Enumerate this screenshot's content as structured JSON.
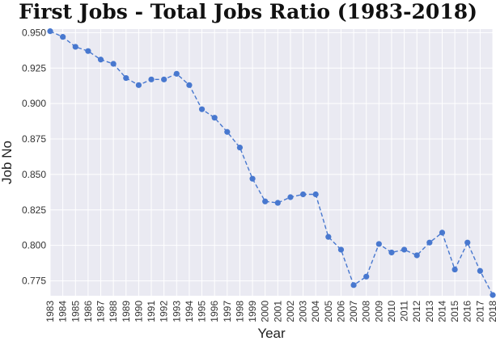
{
  "chart_data": {
    "type": "line",
    "title": "First Jobs - Total Jobs Ratio (1983-2018)",
    "xlabel": "Year",
    "ylabel": "Job No",
    "x": [
      1983,
      1984,
      1985,
      1986,
      1987,
      1988,
      1989,
      1990,
      1991,
      1992,
      1993,
      1994,
      1995,
      1996,
      1997,
      1998,
      1999,
      2000,
      2001,
      2002,
      2003,
      2004,
      2005,
      2006,
      2007,
      2008,
      2009,
      2010,
      2011,
      2012,
      2013,
      2014,
      2015,
      2016,
      2017,
      2018
    ],
    "series": [
      {
        "name": "",
        "values": [
          0.951,
          0.947,
          0.94,
          0.937,
          0.931,
          0.928,
          0.918,
          0.913,
          0.917,
          0.917,
          0.921,
          0.913,
          0.896,
          0.89,
          0.88,
          0.869,
          0.847,
          0.831,
          0.83,
          0.834,
          0.836,
          0.836,
          0.806,
          0.797,
          0.772,
          0.778,
          0.801,
          0.795,
          0.797,
          0.793,
          0.802,
          0.809,
          0.783,
          0.802,
          0.782,
          0.765
        ]
      }
    ],
    "yticks": [
      "0.775",
      "0.800",
      "0.825",
      "0.850",
      "0.875",
      "0.900",
      "0.925",
      "0.950"
    ],
    "ytick_values": [
      0.775,
      0.8,
      0.825,
      0.85,
      0.875,
      0.9,
      0.925,
      0.95
    ],
    "ylim": [
      0.7645,
      0.9525
    ],
    "xlim": [
      1983,
      2018
    ],
    "grid": true,
    "line_style": "dashed",
    "colors": {
      "series": "#4878cf",
      "plot_bg": "#eaeaf2",
      "grid": "#ffffff"
    }
  }
}
